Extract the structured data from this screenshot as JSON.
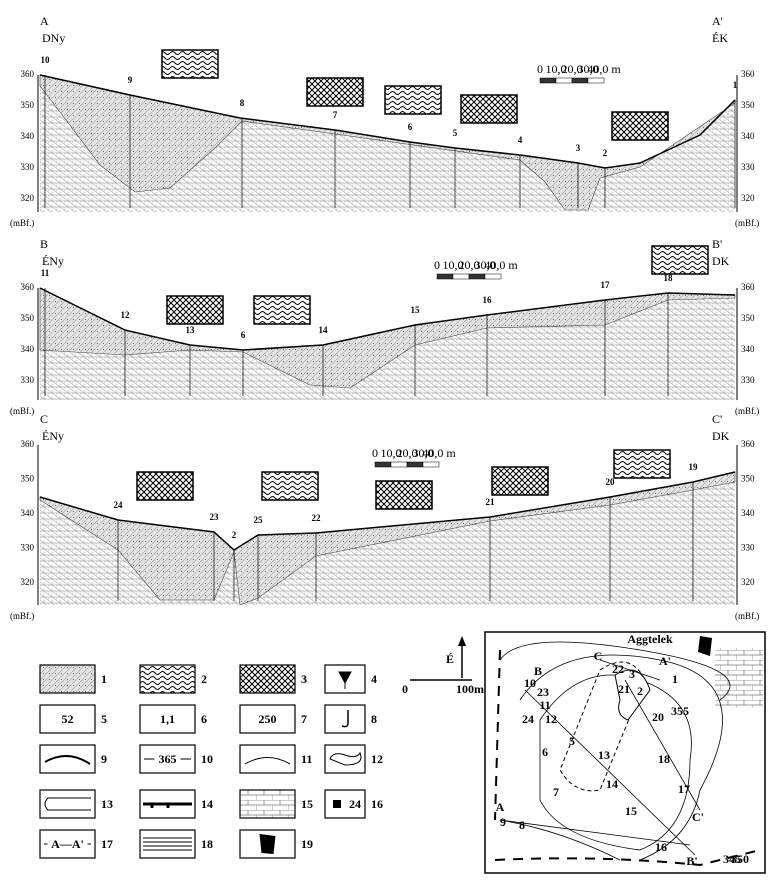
{
  "sections": [
    {
      "left_label": "A",
      "left_dir": "DNy",
      "right_label": "A'",
      "right_dir": "ÉK",
      "ticks": [
        360,
        350,
        340,
        330,
        320
      ],
      "unit_left": "(mBf.)",
      "unit_right": "(mBf.)",
      "boreholes": [
        "10",
        "9",
        "8",
        "7",
        "6",
        "5",
        "4",
        "3",
        "2",
        "1"
      ]
    },
    {
      "left_label": "B",
      "left_dir": "ÉNy",
      "right_label": "B'",
      "right_dir": "DK",
      "ticks": [
        360,
        350,
        340,
        330
      ],
      "unit_left": "(mBf.)",
      "unit_right": "(mBf.)",
      "boreholes": [
        "11",
        "12",
        "13",
        "6",
        "14",
        "15",
        "16",
        "17",
        "18"
      ]
    },
    {
      "left_label": "C",
      "left_dir": "ÉNy",
      "right_label": "C'",
      "right_dir": "DK",
      "ticks": [
        360,
        350,
        340,
        330,
        320
      ],
      "unit_left": "(mBf.)",
      "unit_right": "(mBf.)",
      "boreholes": [
        "24",
        "23",
        "2",
        "25",
        "22",
        "21",
        "20",
        "19"
      ]
    }
  ],
  "scale_bar": {
    "labels": [
      "0",
      "10,0",
      "20,0",
      "30,0",
      "40,0 m"
    ]
  },
  "legend": [
    {
      "number": "1"
    },
    {
      "number": "2"
    },
    {
      "number": "3"
    },
    {
      "number": "4"
    },
    {
      "number": "5",
      "text": "52"
    },
    {
      "number": "6",
      "text": "1,1"
    },
    {
      "number": "7",
      "text": "250"
    },
    {
      "number": "8"
    },
    {
      "number": "9"
    },
    {
      "number": "10",
      "text": "365"
    },
    {
      "number": "11"
    },
    {
      "number": "12"
    },
    {
      "number": "13"
    },
    {
      "number": "14"
    },
    {
      "number": "15"
    },
    {
      "number": "16",
      "text": "24"
    },
    {
      "number": "17",
      "text": "A—A'"
    },
    {
      "number": "18"
    },
    {
      "number": "19"
    }
  ],
  "north": {
    "label": "É"
  },
  "map_scale": {
    "start": "0",
    "end": "100m"
  },
  "map": {
    "town": "Aggtelek",
    "labels": [
      "A",
      "A'",
      "B",
      "B'",
      "C",
      "C'",
      "1",
      "2",
      "3",
      "5",
      "6",
      "7",
      "8",
      "9",
      "10",
      "11",
      "12",
      "13",
      "14",
      "15",
      "16",
      "17",
      "18",
      "20",
      "21",
      "22",
      "23",
      "24",
      "355",
      "345",
      "350"
    ]
  }
}
